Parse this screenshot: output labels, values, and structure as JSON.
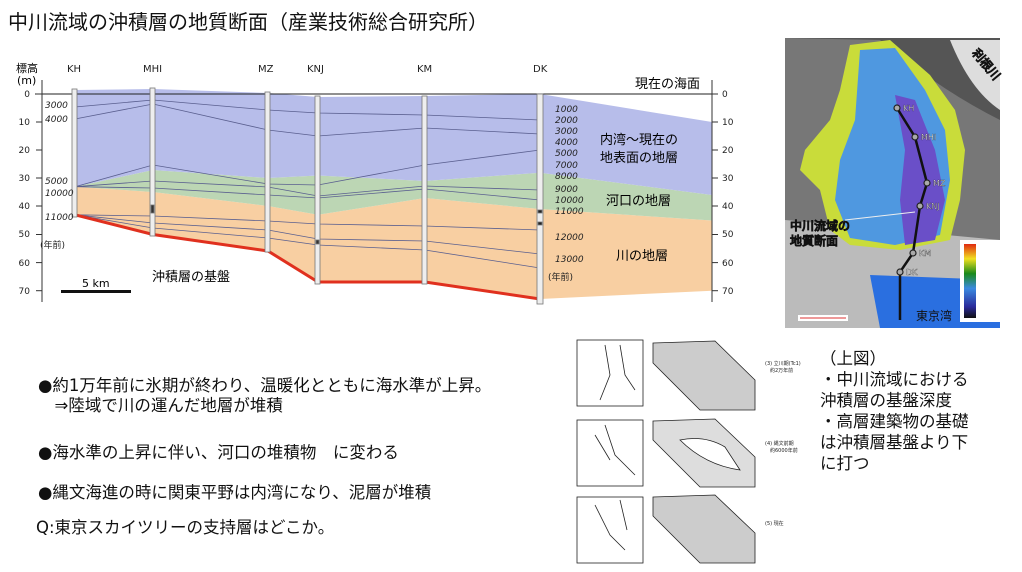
{
  "slide": {
    "title": "中川流域の沖積層の地質断面（産業技術総合研究所）"
  },
  "cross_section": {
    "axis_label_line1": "標高",
    "axis_label_line2": "(m)",
    "depth_ticks": [
      "0",
      "10",
      "20",
      "30",
      "40",
      "50",
      "60",
      "70"
    ],
    "boreholes": [
      "KH",
      "MHI",
      "MZ",
      "KNJ",
      "KM",
      "DK"
    ],
    "left_ages": [
      "3000",
      "4000",
      "5000",
      "10000",
      "11000",
      "(年前)"
    ],
    "dk_ages": [
      "1000",
      "2000",
      "3000",
      "4000",
      "5000",
      "7000",
      "8000",
      "9000",
      "10000",
      "11000",
      "12000",
      "13000",
      "(年前)"
    ],
    "sea_level_label": "現在の海面",
    "layer_upper_line1": "内湾～現在の",
    "layer_upper_line2": "地表面の地層",
    "layer_middle": "河口の地層",
    "layer_lower": "川の地層",
    "basement_label": "沖積層の基盤",
    "scale_label": "5 km",
    "colors": {
      "upper": "#b7bdea",
      "middle": "#bcd6b4",
      "lower": "#f8cfa2",
      "basement_line": "#e0301e"
    }
  },
  "map": {
    "points": [
      "KH",
      "MHI",
      "MZ",
      "KNJ",
      "KM",
      "DK"
    ],
    "river_label": "利根川",
    "section_label_line1": "中川流域の",
    "section_label_line2": "地質断面",
    "bay_label": "東京湾"
  },
  "sketches": [
    {
      "caption_line1": "(3) 立川期(Tc1)",
      "caption_line2": "約2万年前"
    },
    {
      "caption_line1": "(4) 縄文前期",
      "caption_line2": "約6000年前"
    },
    {
      "caption_line1": "(5) 現在",
      "caption_line2": ""
    }
  ],
  "bullets": [
    {
      "line1": "●約1万年前に氷期が終わり、温暖化とともに海水準が上昇。",
      "line2": "　⇒陸域で川の運んだ地層が堆積"
    },
    {
      "line1": "●海水準の上昇に伴い、河口の堆積物　に変わる"
    },
    {
      "line1": "●縄文海進の時に関東平野は内湾になり、泥層が堆積"
    },
    {
      "line1": "Q:東京スカイツリーの支持層はどこか。"
    }
  ],
  "note": {
    "lines": [
      "（上図）",
      "・中川流域における",
      "沖積層の基盤深度",
      "・高層建築物の基礎",
      "は沖積層基盤より下",
      "に打つ"
    ]
  }
}
